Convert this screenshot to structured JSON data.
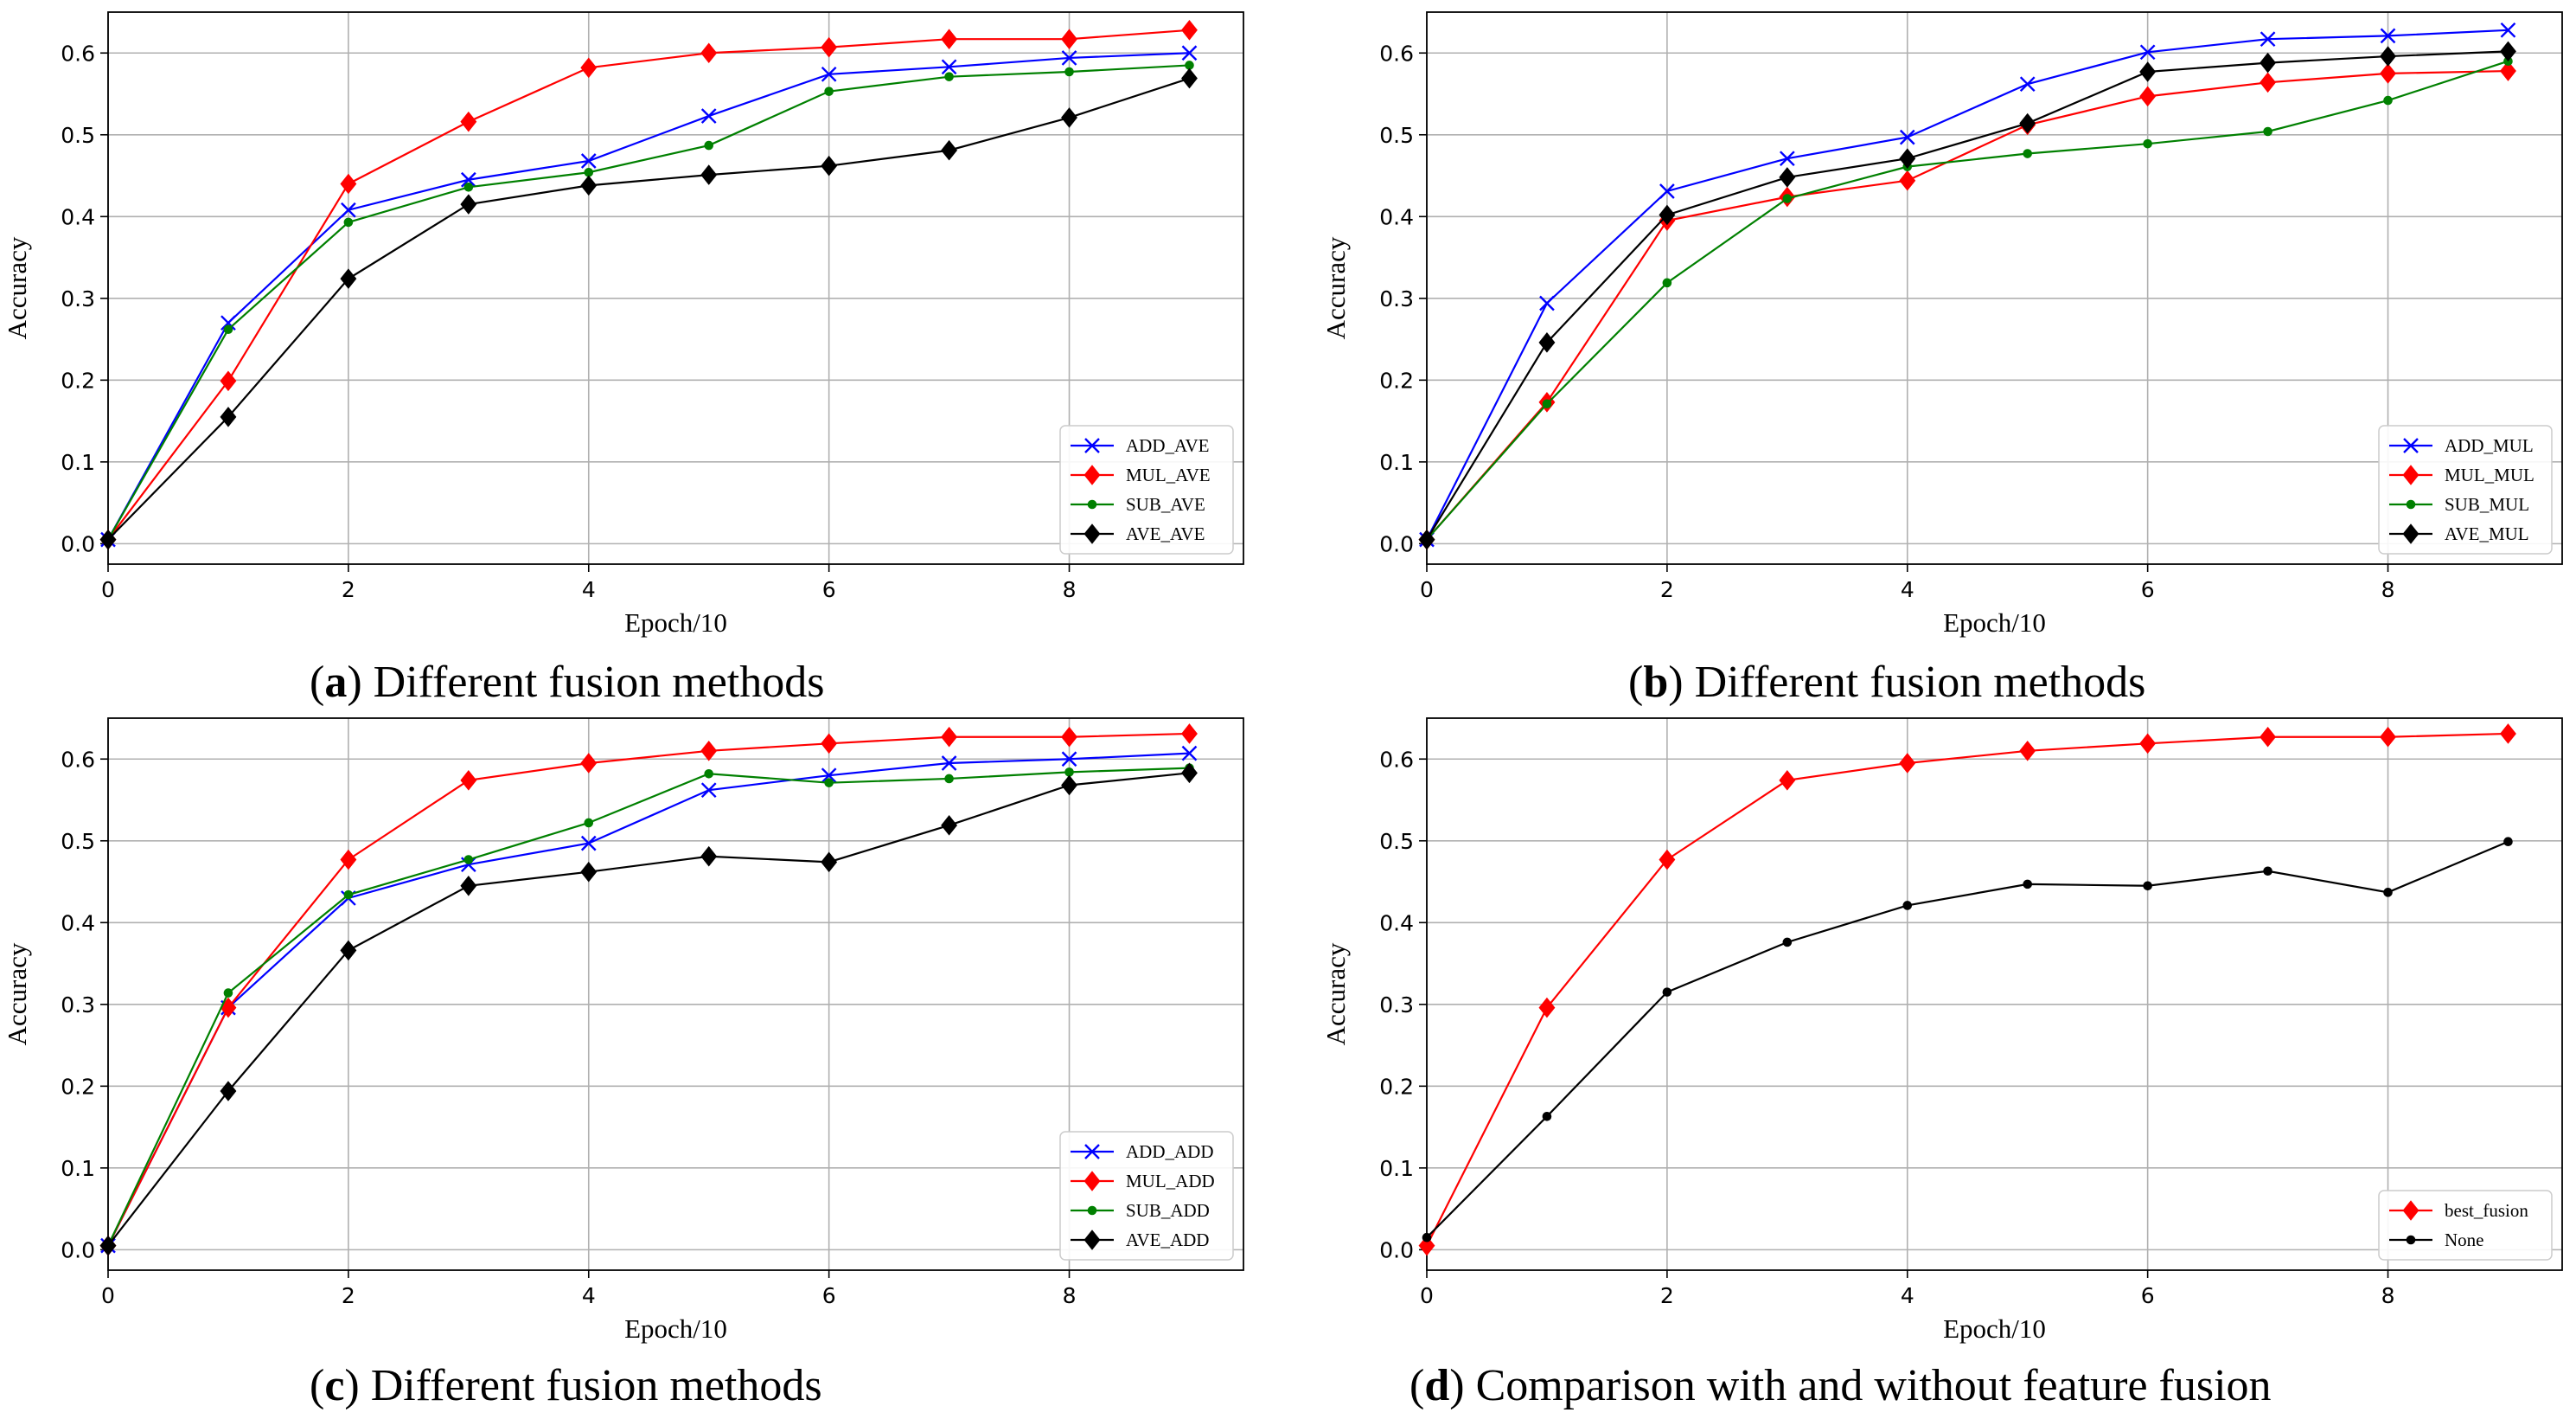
{
  "figure": {
    "colors": {
      "blue": "#0000ff",
      "red": "#ff0000",
      "green": "#008000",
      "black": "#000000"
    }
  },
  "chart_data": [
    {
      "id": "a",
      "type": "line",
      "caption_letter": "a",
      "caption_text": " Different fusion methods",
      "xlabel": "Epoch/10",
      "ylabel": "Accuracy",
      "xlim": [
        0,
        9.45
      ],
      "ylim": [
        -0.025,
        0.65
      ],
      "xticks": [
        0,
        2,
        4,
        6,
        8
      ],
      "yticks": [
        0.0,
        0.1,
        0.2,
        0.3,
        0.4,
        0.5,
        0.6
      ],
      "ytick_labels": [
        "0.0",
        "0.1",
        "0.2",
        "0.3",
        "0.4",
        "0.5",
        "0.6"
      ],
      "legend_position": "lower-right",
      "x": [
        0,
        1,
        2,
        3,
        4,
        5,
        6,
        7,
        8,
        9
      ],
      "series": [
        {
          "name": "ADD_AVE",
          "color": "#0000ff",
          "marker": "x",
          "values": [
            0.005,
            0.27,
            0.408,
            0.445,
            0.468,
            0.523,
            0.574,
            0.583,
            0.594,
            0.6
          ]
        },
        {
          "name": "MUL_AVE",
          "color": "#ff0000",
          "marker": "diamond",
          "values": [
            0.005,
            0.199,
            0.44,
            0.516,
            0.582,
            0.6,
            0.607,
            0.617,
            0.617,
            0.628
          ]
        },
        {
          "name": "SUB_AVE",
          "color": "#008000",
          "marker": "dot",
          "values": [
            0.005,
            0.262,
            0.393,
            0.436,
            0.454,
            0.487,
            0.553,
            0.571,
            0.577,
            0.585
          ]
        },
        {
          "name": "AVE_AVE",
          "color": "#000000",
          "marker": "diamond",
          "values": [
            0.005,
            0.155,
            0.324,
            0.415,
            0.438,
            0.451,
            0.462,
            0.481,
            0.521,
            0.569
          ]
        }
      ]
    },
    {
      "id": "b",
      "type": "line",
      "caption_letter": "b",
      "caption_text": " Different fusion methods",
      "xlabel": "Epoch/10",
      "ylabel": "Accuracy",
      "xlim": [
        0,
        9.45
      ],
      "ylim": [
        -0.025,
        0.65
      ],
      "xticks": [
        0,
        2,
        4,
        6,
        8
      ],
      "yticks": [
        0.0,
        0.1,
        0.2,
        0.3,
        0.4,
        0.5,
        0.6
      ],
      "ytick_labels": [
        "0.0",
        "0.1",
        "0.2",
        "0.3",
        "0.4",
        "0.5",
        "0.6"
      ],
      "legend_position": "lower-right",
      "x": [
        0,
        1,
        2,
        3,
        4,
        5,
        6,
        7,
        8,
        9
      ],
      "series": [
        {
          "name": "ADD_MUL",
          "color": "#0000ff",
          "marker": "x",
          "values": [
            0.005,
            0.294,
            0.431,
            0.471,
            0.497,
            0.562,
            0.601,
            0.617,
            0.621,
            0.628
          ]
        },
        {
          "name": "MUL_MUL",
          "color": "#ff0000",
          "marker": "diamond",
          "values": [
            0.005,
            0.173,
            0.395,
            0.424,
            0.444,
            0.512,
            0.547,
            0.564,
            0.575,
            0.578
          ]
        },
        {
          "name": "SUB_MUL",
          "color": "#008000",
          "marker": "dot",
          "values": [
            0.005,
            0.171,
            0.319,
            0.422,
            0.461,
            0.477,
            0.489,
            0.504,
            0.542,
            0.59
          ]
        },
        {
          "name": "AVE_MUL",
          "color": "#000000",
          "marker": "diamond",
          "values": [
            0.005,
            0.246,
            0.402,
            0.448,
            0.471,
            0.514,
            0.577,
            0.588,
            0.596,
            0.602
          ]
        }
      ]
    },
    {
      "id": "c",
      "type": "line",
      "caption_letter": "c",
      "caption_text": " Different fusion methods",
      "xlabel": "Epoch/10",
      "ylabel": "Accuracy",
      "xlim": [
        0,
        9.45
      ],
      "ylim": [
        -0.025,
        0.65
      ],
      "xticks": [
        0,
        2,
        4,
        6,
        8
      ],
      "yticks": [
        0.0,
        0.1,
        0.2,
        0.3,
        0.4,
        0.5,
        0.6
      ],
      "ytick_labels": [
        "0.0",
        "0.1",
        "0.2",
        "0.3",
        "0.4",
        "0.5",
        "0.6"
      ],
      "legend_position": "lower-right",
      "x": [
        0,
        1,
        2,
        3,
        4,
        5,
        6,
        7,
        8,
        9
      ],
      "series": [
        {
          "name": "ADD_ADD",
          "color": "#0000ff",
          "marker": "x",
          "values": [
            0.005,
            0.296,
            0.43,
            0.471,
            0.497,
            0.562,
            0.58,
            0.595,
            0.6,
            0.607
          ]
        },
        {
          "name": "MUL_ADD",
          "color": "#ff0000",
          "marker": "diamond",
          "values": [
            0.005,
            0.296,
            0.477,
            0.574,
            0.595,
            0.61,
            0.619,
            0.627,
            0.627,
            0.631
          ]
        },
        {
          "name": "SUB_ADD",
          "color": "#008000",
          "marker": "dot",
          "values": [
            0.005,
            0.314,
            0.434,
            0.477,
            0.522,
            0.582,
            0.571,
            0.576,
            0.584,
            0.589
          ]
        },
        {
          "name": "AVE_ADD",
          "color": "#000000",
          "marker": "diamond",
          "values": [
            0.005,
            0.194,
            0.366,
            0.445,
            0.462,
            0.481,
            0.474,
            0.519,
            0.568,
            0.583
          ]
        }
      ]
    },
    {
      "id": "d",
      "type": "line",
      "caption_letter": "d",
      "caption_text": " Comparison with and without feature fusion",
      "xlabel": "Epoch/10",
      "ylabel": "Accuracy",
      "xlim": [
        0,
        9.45
      ],
      "ylim": [
        -0.025,
        0.65
      ],
      "xticks": [
        0,
        2,
        4,
        6,
        8
      ],
      "yticks": [
        0.0,
        0.1,
        0.2,
        0.3,
        0.4,
        0.5,
        0.6
      ],
      "ytick_labels": [
        "0.0",
        "0.1",
        "0.2",
        "0.3",
        "0.4",
        "0.5",
        "0.6"
      ],
      "legend_position": "lower-right",
      "x": [
        0,
        1,
        2,
        3,
        4,
        5,
        6,
        7,
        8,
        9
      ],
      "series": [
        {
          "name": "best_fusion",
          "color": "#ff0000",
          "marker": "diamond",
          "values": [
            0.005,
            0.296,
            0.477,
            0.574,
            0.595,
            0.61,
            0.619,
            0.627,
            0.627,
            0.631
          ]
        },
        {
          "name": "None",
          "color": "#000000",
          "marker": "dot",
          "values": [
            0.015,
            0.163,
            0.315,
            0.376,
            0.421,
            0.447,
            0.445,
            0.463,
            0.437,
            0.499
          ]
        }
      ]
    }
  ]
}
